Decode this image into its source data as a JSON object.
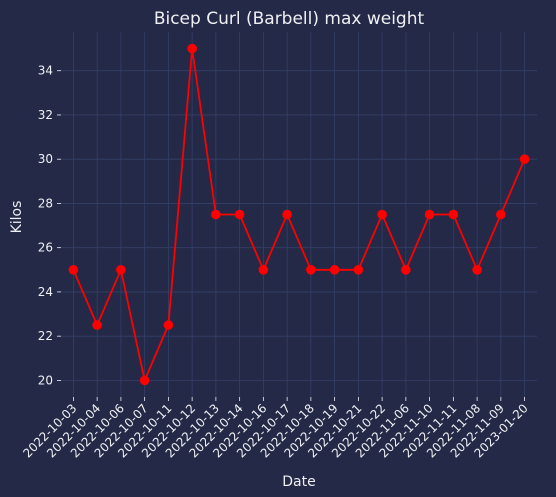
{
  "chart_data": {
    "type": "line",
    "title": "Bicep Curl (Barbell) max weight",
    "xlabel": "Date",
    "ylabel": "Kilos",
    "x": [
      "2022-10-03",
      "2022-10-04",
      "2022-10-06",
      "2022-10-07",
      "2022-10-11",
      "2022-10-12",
      "2022-10-13",
      "2022-10-14",
      "2022-10-16",
      "2022-10-17",
      "2022-10-18",
      "2022-10-19",
      "2022-10-21",
      "2022-10-22",
      "2022-11-06",
      "2022-11-10",
      "2022-11-11",
      "2022-11-08",
      "2022-11-09",
      "2023-01-20"
    ],
    "series": [
      {
        "values": [
          25,
          22.5,
          25,
          20,
          22.5,
          35,
          27.5,
          27.5,
          25,
          27.5,
          25,
          25,
          25,
          27.5,
          25,
          27.5,
          27.5,
          25,
          27.5,
          30
        ],
        "color": "#ff0000"
      }
    ],
    "ylim": [
      19.25,
      35.75
    ],
    "yticks": [
      20,
      22,
      24,
      26,
      28,
      30,
      32,
      34
    ],
    "grid": true,
    "x_tick_rotation": 45,
    "marker": "circle"
  },
  "colors": {
    "background": "#232946",
    "grid": "#34406a",
    "text": "#f0f0f4",
    "line": "#ff0000"
  }
}
